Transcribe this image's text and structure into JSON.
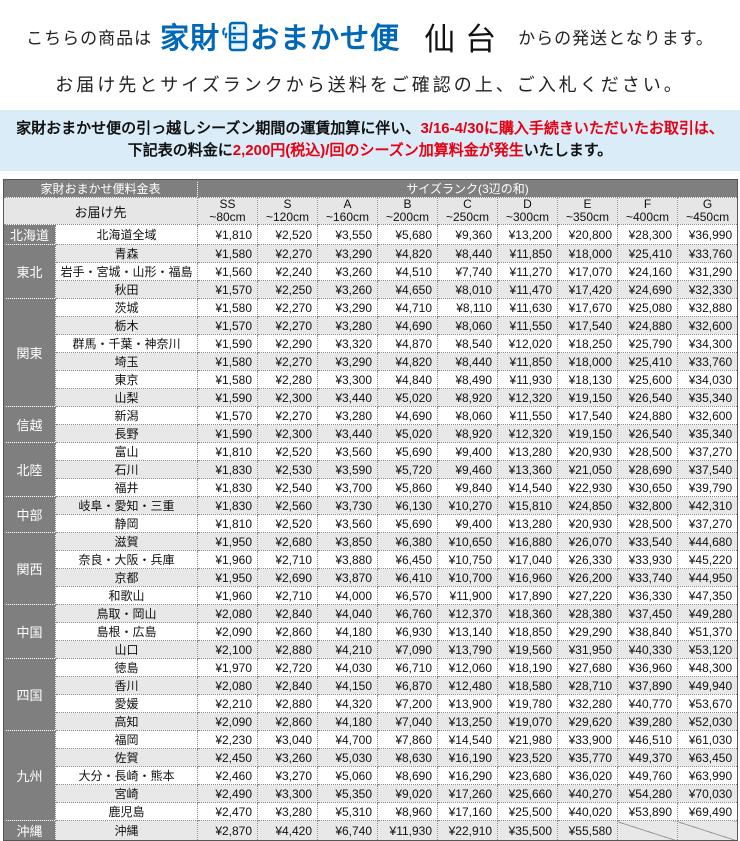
{
  "header": {
    "prefix": "こちらの商品は",
    "logo_prefix": "家財",
    "logo_suffix": "おまかせ便",
    "origin": "仙台",
    "suffix": "からの発送となります。",
    "instruction": "お届け先とサイズランクから送料をご確認の上、ご入札ください。"
  },
  "notice": {
    "line1_black": "家財おまかせ便の引っ越しシーズン期間の運賃加算に伴い、",
    "line1_red": "3/16-4/30に購入手続きいただいたお取引は、",
    "line2_black1": "下記表の料金に",
    "line2_red": "2,200円(税込)/回のシーズン加算料金が発生",
    "line2_black2": "いたします。"
  },
  "table": {
    "corner_title": "家財おまかせ便料金表",
    "size_rank_title": "サイズランク(3辺の和)",
    "destination_header": "お届け先",
    "size_columns": [
      {
        "rank": "SS",
        "range": "~80cm"
      },
      {
        "rank": "S",
        "range": "~120cm"
      },
      {
        "rank": "A",
        "range": "~160cm"
      },
      {
        "rank": "B",
        "range": "~200cm"
      },
      {
        "rank": "C",
        "range": "~250cm"
      },
      {
        "rank": "D",
        "range": "~300cm"
      },
      {
        "rank": "E",
        "range": "~350cm"
      },
      {
        "rank": "F",
        "range": "~400cm"
      },
      {
        "rank": "G",
        "range": "~450cm"
      }
    ],
    "regions": [
      {
        "name": "北海道",
        "rows": [
          {
            "dest": "北海道全域",
            "prices": [
              "¥1,810",
              "¥2,520",
              "¥3,550",
              "¥5,680",
              "¥9,360",
              "¥13,200",
              "¥20,800",
              "¥28,300",
              "¥36,990"
            ]
          }
        ]
      },
      {
        "name": "東北",
        "rows": [
          {
            "dest": "青森",
            "prices": [
              "¥1,580",
              "¥2,270",
              "¥3,290",
              "¥4,820",
              "¥8,440",
              "¥11,850",
              "¥18,000",
              "¥25,410",
              "¥33,760"
            ]
          },
          {
            "dest": "岩手・宮城・山形・福島",
            "prices": [
              "¥1,560",
              "¥2,240",
              "¥3,260",
              "¥4,510",
              "¥7,740",
              "¥11,270",
              "¥17,070",
              "¥24,160",
              "¥31,290"
            ]
          },
          {
            "dest": "秋田",
            "prices": [
              "¥1,570",
              "¥2,250",
              "¥3,260",
              "¥4,650",
              "¥8,010",
              "¥11,470",
              "¥17,420",
              "¥24,690",
              "¥32,330"
            ]
          }
        ]
      },
      {
        "name": "関東",
        "rows": [
          {
            "dest": "茨城",
            "prices": [
              "¥1,580",
              "¥2,270",
              "¥3,290",
              "¥4,710",
              "¥8,110",
              "¥11,630",
              "¥17,670",
              "¥25,080",
              "¥32,880"
            ]
          },
          {
            "dest": "栃木",
            "prices": [
              "¥1,570",
              "¥2,270",
              "¥3,280",
              "¥4,690",
              "¥8,060",
              "¥11,550",
              "¥17,540",
              "¥24,880",
              "¥32,600"
            ]
          },
          {
            "dest": "群馬・千葉・神奈川",
            "prices": [
              "¥1,590",
              "¥2,290",
              "¥3,320",
              "¥4,870",
              "¥8,540",
              "¥12,020",
              "¥18,250",
              "¥25,790",
              "¥34,300"
            ]
          },
          {
            "dest": "埼玉",
            "prices": [
              "¥1,580",
              "¥2,270",
              "¥3,290",
              "¥4,820",
              "¥8,440",
              "¥11,850",
              "¥18,000",
              "¥25,410",
              "¥33,760"
            ]
          },
          {
            "dest": "東京",
            "prices": [
              "¥1,580",
              "¥2,280",
              "¥3,300",
              "¥4,840",
              "¥8,490",
              "¥11,930",
              "¥18,130",
              "¥25,600",
              "¥34,030"
            ]
          },
          {
            "dest": "山梨",
            "prices": [
              "¥1,590",
              "¥2,300",
              "¥3,440",
              "¥5,020",
              "¥8,920",
              "¥12,320",
              "¥19,150",
              "¥26,540",
              "¥35,340"
            ]
          }
        ]
      },
      {
        "name": "信越",
        "rows": [
          {
            "dest": "新潟",
            "prices": [
              "¥1,570",
              "¥2,270",
              "¥3,280",
              "¥4,690",
              "¥8,060",
              "¥11,550",
              "¥17,540",
              "¥24,880",
              "¥32,600"
            ]
          },
          {
            "dest": "長野",
            "prices": [
              "¥1,590",
              "¥2,300",
              "¥3,440",
              "¥5,020",
              "¥8,920",
              "¥12,320",
              "¥19,150",
              "¥26,540",
              "¥35,340"
            ]
          }
        ]
      },
      {
        "name": "北陸",
        "rows": [
          {
            "dest": "富山",
            "prices": [
              "¥1,810",
              "¥2,520",
              "¥3,560",
              "¥5,690",
              "¥9,400",
              "¥13,280",
              "¥20,930",
              "¥28,500",
              "¥37,270"
            ]
          },
          {
            "dest": "石川",
            "prices": [
              "¥1,830",
              "¥2,530",
              "¥3,590",
              "¥5,720",
              "¥9,460",
              "¥13,360",
              "¥21,050",
              "¥28,690",
              "¥37,540"
            ]
          },
          {
            "dest": "福井",
            "prices": [
              "¥1,830",
              "¥2,540",
              "¥3,700",
              "¥5,860",
              "¥9,840",
              "¥14,540",
              "¥22,930",
              "¥30,650",
              "¥39,790"
            ]
          }
        ]
      },
      {
        "name": "中部",
        "rows": [
          {
            "dest": "岐阜・愛知・三重",
            "prices": [
              "¥1,830",
              "¥2,560",
              "¥3,730",
              "¥6,130",
              "¥10,270",
              "¥15,810",
              "¥24,850",
              "¥32,800",
              "¥42,310"
            ]
          },
          {
            "dest": "静岡",
            "prices": [
              "¥1,810",
              "¥2,520",
              "¥3,560",
              "¥5,690",
              "¥9,400",
              "¥13,280",
              "¥20,930",
              "¥28,500",
              "¥37,270"
            ]
          }
        ]
      },
      {
        "name": "関西",
        "rows": [
          {
            "dest": "滋賀",
            "prices": [
              "¥1,950",
              "¥2,680",
              "¥3,850",
              "¥6,380",
              "¥10,650",
              "¥16,880",
              "¥26,070",
              "¥33,540",
              "¥44,680"
            ]
          },
          {
            "dest": "奈良・大阪・兵庫",
            "prices": [
              "¥1,960",
              "¥2,710",
              "¥3,880",
              "¥6,450",
              "¥10,750",
              "¥17,040",
              "¥26,330",
              "¥33,930",
              "¥45,220"
            ]
          },
          {
            "dest": "京都",
            "prices": [
              "¥1,950",
              "¥2,690",
              "¥3,870",
              "¥6,410",
              "¥10,700",
              "¥16,960",
              "¥26,200",
              "¥33,740",
              "¥44,950"
            ]
          },
          {
            "dest": "和歌山",
            "prices": [
              "¥1,960",
              "¥2,710",
              "¥4,000",
              "¥6,570",
              "¥11,900",
              "¥17,890",
              "¥27,220",
              "¥36,330",
              "¥47,350"
            ]
          }
        ]
      },
      {
        "name": "中国",
        "rows": [
          {
            "dest": "鳥取・岡山",
            "prices": [
              "¥2,080",
              "¥2,840",
              "¥4,040",
              "¥6,760",
              "¥12,370",
              "¥18,360",
              "¥28,380",
              "¥37,450",
              "¥49,280"
            ]
          },
          {
            "dest": "島根・広島",
            "prices": [
              "¥2,090",
              "¥2,860",
              "¥4,180",
              "¥6,930",
              "¥13,140",
              "¥18,850",
              "¥29,290",
              "¥38,840",
              "¥51,370"
            ]
          },
          {
            "dest": "山口",
            "prices": [
              "¥2,100",
              "¥2,880",
              "¥4,210",
              "¥7,090",
              "¥13,790",
              "¥19,560",
              "¥31,950",
              "¥40,330",
              "¥53,120"
            ]
          }
        ]
      },
      {
        "name": "四国",
        "rows": [
          {
            "dest": "徳島",
            "prices": [
              "¥1,970",
              "¥2,720",
              "¥4,030",
              "¥6,710",
              "¥12,060",
              "¥18,190",
              "¥27,680",
              "¥36,960",
              "¥48,300"
            ]
          },
          {
            "dest": "香川",
            "prices": [
              "¥2,080",
              "¥2,840",
              "¥4,150",
              "¥6,870",
              "¥12,480",
              "¥18,580",
              "¥28,710",
              "¥37,890",
              "¥49,940"
            ]
          },
          {
            "dest": "愛媛",
            "prices": [
              "¥2,210",
              "¥2,880",
              "¥4,320",
              "¥7,200",
              "¥13,900",
              "¥19,780",
              "¥32,280",
              "¥40,770",
              "¥53,670"
            ]
          },
          {
            "dest": "高知",
            "prices": [
              "¥2,090",
              "¥2,860",
              "¥4,180",
              "¥7,040",
              "¥13,250",
              "¥19,070",
              "¥29,620",
              "¥39,280",
              "¥52,030"
            ]
          }
        ]
      },
      {
        "name": "九州",
        "rows": [
          {
            "dest": "福岡",
            "prices": [
              "¥2,230",
              "¥3,040",
              "¥4,700",
              "¥7,860",
              "¥14,540",
              "¥21,980",
              "¥33,900",
              "¥46,510",
              "¥61,030"
            ]
          },
          {
            "dest": "佐賀",
            "prices": [
              "¥2,450",
              "¥3,260",
              "¥5,030",
              "¥8,630",
              "¥16,190",
              "¥23,520",
              "¥35,770",
              "¥49,370",
              "¥63,450"
            ]
          },
          {
            "dest": "大分・長崎・熊本",
            "prices": [
              "¥2,460",
              "¥3,270",
              "¥5,060",
              "¥8,690",
              "¥16,290",
              "¥23,680",
              "¥36,020",
              "¥49,760",
              "¥63,990"
            ]
          },
          {
            "dest": "宮崎",
            "prices": [
              "¥2,490",
              "¥3,300",
              "¥5,350",
              "¥9,020",
              "¥17,260",
              "¥25,660",
              "¥40,270",
              "¥54,280",
              "¥70,030"
            ]
          },
          {
            "dest": "鹿児島",
            "prices": [
              "¥2,470",
              "¥3,280",
              "¥5,310",
              "¥8,960",
              "¥17,160",
              "¥25,500",
              "¥40,020",
              "¥53,890",
              "¥69,490"
            ]
          }
        ]
      },
      {
        "name": "沖縄",
        "rows": [
          {
            "dest": "沖縄",
            "prices": [
              "¥2,870",
              "¥4,420",
              "¥6,740",
              "¥11,930",
              "¥22,910",
              "¥35,500",
              "¥55,580",
              null,
              null
            ]
          }
        ]
      }
    ]
  },
  "colors": {
    "brand_blue": "#0068b7",
    "notice_bg": "#d9ecf8",
    "notice_red": "#e60012",
    "header_gray": "#7f7f7f",
    "stripe_gray": "#e8e8e8"
  }
}
